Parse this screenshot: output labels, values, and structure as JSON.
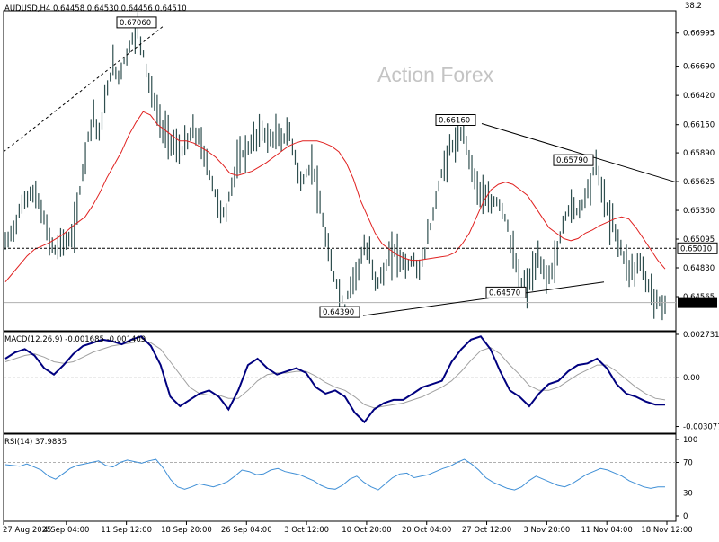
{
  "header": {
    "main": "AUDUSD,H4  0.64458 0.64530 0.64456 0.64510",
    "corner": "38.2",
    "macd": "MACD(12,26,9) -0.001685 -0.001409",
    "rsi": "RSI(14) 37.9835"
  },
  "watermark": "Action Forex",
  "colors": {
    "price_bars": "#2f4f4f",
    "ma_line": "#e0201f",
    "macd_line": "#00007f",
    "signal_line": "#a0a0a0",
    "rsi_line": "#3f8fd6",
    "trendline": "#000000",
    "last_price_bg": "#000000"
  },
  "chart_data": [
    {
      "type": "line",
      "name": "price",
      "series_kind": "ohlc-bars",
      "ylim": [
        0.6425,
        0.672
      ],
      "y_ticks": [
        "0.66995",
        "0.66690",
        "0.66420",
        "0.66150",
        "0.65890",
        "0.65625",
        "0.65360",
        "0.65095",
        "0.64830",
        "0.64565"
      ],
      "x_ticks": [
        "27 Aug 2025",
        "4 Sep 04:00",
        "11 Sep 12:00",
        "18 Sep 20:00",
        "26 Sep 04:00",
        "3 Oct 12:00",
        "10 Oct 20:00",
        "20 Oct 04:00",
        "27 Oct 12:00",
        "3 Nov 20:00",
        "11 Nov 04:00",
        "18 Nov 12:00"
      ],
      "close_series": [
        0.6505,
        0.6515,
        0.653,
        0.6545,
        0.6552,
        0.6548,
        0.653,
        0.651,
        0.6498,
        0.651,
        0.6505,
        0.652,
        0.656,
        0.66,
        0.6625,
        0.6605,
        0.664,
        0.667,
        0.666,
        0.6675,
        0.669,
        0.6706,
        0.668,
        0.665,
        0.663,
        0.661,
        0.6605,
        0.6595,
        0.659,
        0.66,
        0.661,
        0.66,
        0.658,
        0.656,
        0.654,
        0.653,
        0.656,
        0.658,
        0.659,
        0.6595,
        0.6605,
        0.661,
        0.66,
        0.6605,
        0.66,
        0.661,
        0.659,
        0.656,
        0.657,
        0.658,
        0.654,
        0.651,
        0.648,
        0.6465,
        0.6445,
        0.647,
        0.648,
        0.65,
        0.6495,
        0.647,
        0.6475,
        0.649,
        0.65,
        0.649,
        0.6485,
        0.649,
        0.648,
        0.6505,
        0.653,
        0.656,
        0.658,
        0.6595,
        0.66,
        0.661,
        0.658,
        0.656,
        0.655,
        0.654,
        0.6545,
        0.654,
        0.652,
        0.649,
        0.647,
        0.6465,
        0.648,
        0.649,
        0.6475,
        0.648,
        0.65,
        0.653,
        0.654,
        0.6535,
        0.6545,
        0.656,
        0.6579,
        0.6555,
        0.653,
        0.652,
        0.65,
        0.6485,
        0.648,
        0.649,
        0.647,
        0.646,
        0.645,
        0.6451
      ],
      "ma_series": [
        0.647,
        0.6478,
        0.6486,
        0.6494,
        0.65,
        0.6503,
        0.6506,
        0.651,
        0.6514,
        0.652,
        0.6525,
        0.653,
        0.654,
        0.6552,
        0.6566,
        0.6578,
        0.659,
        0.6605,
        0.6617,
        0.6627,
        0.6624,
        0.6615,
        0.661,
        0.6605,
        0.66,
        0.66,
        0.6598,
        0.6594,
        0.659,
        0.6585,
        0.6578,
        0.657,
        0.6568,
        0.657,
        0.6572,
        0.6576,
        0.658,
        0.6585,
        0.659,
        0.6595,
        0.6598,
        0.66,
        0.66,
        0.66,
        0.6598,
        0.6595,
        0.659,
        0.658,
        0.6565,
        0.6545,
        0.653,
        0.6515,
        0.6505,
        0.65,
        0.6495,
        0.6492,
        0.649,
        0.649,
        0.6491,
        0.6492,
        0.6493,
        0.6494,
        0.6497,
        0.6505,
        0.6515,
        0.653,
        0.6545,
        0.6555,
        0.656,
        0.6562,
        0.656,
        0.6555,
        0.655,
        0.654,
        0.653,
        0.652,
        0.6515,
        0.651,
        0.6508,
        0.651,
        0.6515,
        0.6518,
        0.6522,
        0.6525,
        0.6528,
        0.653,
        0.6528,
        0.652,
        0.651,
        0.65,
        0.649,
        0.6482
      ],
      "horizontal_lines": [
        {
          "label": "0.65010",
          "value": 0.6501,
          "style": "dashed"
        },
        {
          "label": "0.64510",
          "value": 0.6451,
          "style": "solid",
          "last_price": true
        }
      ],
      "annotations": [
        {
          "label": "0.67060",
          "value": 0.6706
        },
        {
          "label": "0.66160",
          "value": 0.6616
        },
        {
          "label": "0.65790",
          "value": 0.6579
        },
        {
          "label": "0.64570",
          "value": 0.6457
        },
        {
          "label": "0.64390",
          "value": 0.6439
        }
      ],
      "trendlines": [
        {
          "kind": "dashed",
          "from": 0.659,
          "to": 0.6706
        },
        {
          "kind": "solid",
          "from": 0.6616,
          "to": 0.6562
        },
        {
          "kind": "solid",
          "from": 0.6439,
          "to": 0.647
        }
      ]
    },
    {
      "type": "line",
      "name": "MACD(12,26,9)",
      "ylim": [
        -0.0035,
        0.0029
      ],
      "y_ticks": [
        "0.002731",
        "0.00",
        "-0.003077"
      ],
      "macd_series": [
        0.0012,
        0.0016,
        0.0018,
        0.0014,
        0.0006,
        0.0002,
        0.0008,
        0.0015,
        0.002,
        0.0022,
        0.0024,
        0.0023,
        0.0021,
        0.0024,
        0.0026,
        0.002,
        0.0008,
        -0.0012,
        -0.0018,
        -0.0014,
        -0.001,
        -0.0008,
        -0.0012,
        -0.002,
        -0.0008,
        0.0008,
        0.0012,
        0.0006,
        0.0002,
        0.0004,
        0.0006,
        0.0003,
        -0.0006,
        -0.001,
        -0.0008,
        -0.0012,
        -0.0022,
        -0.0028,
        -0.002,
        -0.0016,
        -0.0014,
        -0.0014,
        -0.001,
        -0.0006,
        -0.0004,
        -0.0002,
        0.001,
        0.0018,
        0.0024,
        0.0026,
        0.0018,
        0.0004,
        -0.0008,
        -0.0012,
        -0.0018,
        -0.001,
        -0.0004,
        -0.0002,
        0.0004,
        0.0008,
        0.0009,
        0.0012,
        0.0006,
        -0.0004,
        -0.001,
        -0.0012,
        -0.0015,
        -0.0017,
        -0.0017
      ],
      "signal_series": [
        0.001,
        0.0012,
        0.0014,
        0.0015,
        0.0013,
        0.001,
        0.0009,
        0.001,
        0.0013,
        0.0016,
        0.0018,
        0.002,
        0.0021,
        0.0022,
        0.0023,
        0.0022,
        0.0018,
        0.001,
        0.0002,
        -0.0006,
        -0.001,
        -0.0011,
        -0.0011,
        -0.0013,
        -0.0013,
        -0.0008,
        -0.0002,
        0.0002,
        0.0003,
        0.0003,
        0.0004,
        0.0004,
        0.0001,
        -0.0003,
        -0.0006,
        -0.0008,
        -0.0012,
        -0.0017,
        -0.0019,
        -0.0018,
        -0.0017,
        -0.0016,
        -0.0014,
        -0.0012,
        -0.0009,
        -0.0006,
        -0.0002,
        0.0004,
        0.0011,
        0.0017,
        0.0019,
        0.0015,
        0.0008,
        0.0002,
        -0.0005,
        -0.0008,
        -0.0008,
        -0.0006,
        -0.0002,
        0.0002,
        0.0005,
        0.0008,
        0.0008,
        0.0004,
        -0.0001,
        -0.0006,
        -0.001,
        -0.0013,
        -0.0014
      ]
    },
    {
      "type": "line",
      "name": "RSI(14)",
      "ylim": [
        0,
        100
      ],
      "y_ticks": [
        "100",
        "70",
        "30",
        "0"
      ],
      "rsi_series": [
        67,
        66,
        65,
        68,
        64,
        60,
        52,
        48,
        55,
        62,
        66,
        68,
        70,
        72,
        66,
        64,
        70,
        73,
        71,
        69,
        72,
        74,
        63,
        48,
        38,
        35,
        38,
        42,
        40,
        38,
        41,
        45,
        52,
        60,
        58,
        54,
        55,
        60,
        62,
        58,
        56,
        54,
        50,
        46,
        40,
        36,
        35,
        40,
        48,
        52,
        44,
        38,
        34,
        42,
        50,
        55,
        56,
        50,
        52,
        54,
        58,
        62,
        65,
        70,
        74,
        68,
        60,
        50,
        44,
        40,
        36,
        34,
        38,
        46,
        52,
        48,
        44,
        40,
        38,
        42,
        48,
        54,
        58,
        62,
        60,
        56,
        52,
        46,
        42,
        38,
        36,
        38,
        37.98
      ]
    }
  ]
}
